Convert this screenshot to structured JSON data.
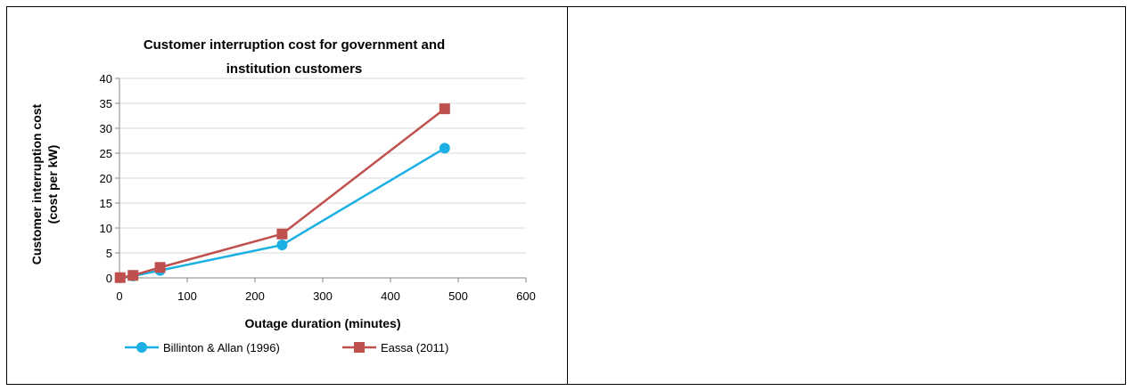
{
  "chart_data": {
    "type": "line",
    "title": [
      "Customer interruption cost for government and",
      "institution customers"
    ],
    "xlabel": "Outage duration (minutes)",
    "ylabel": [
      "Customer interruption cost",
      "(cost per kW)"
    ],
    "xlim": [
      0,
      600
    ],
    "ylim": [
      0,
      40
    ],
    "xticks": [
      0,
      100,
      200,
      300,
      400,
      500,
      600
    ],
    "yticks": [
      0,
      5,
      10,
      15,
      20,
      25,
      30,
      35,
      40
    ],
    "grid": "horizontal",
    "legend_position": "bottom",
    "series": [
      {
        "name": "Billinton & Allan (1996)",
        "color": "#1ab0e4",
        "marker": "circle",
        "x": [
          1,
          20,
          60,
          240,
          480
        ],
        "y": [
          0.04,
          0.37,
          1.5,
          6.6,
          26.0
        ]
      },
      {
        "name": "Eassa (2011)",
        "color": "#c0504d",
        "marker": "square",
        "x": [
          1,
          20,
          60,
          240,
          480
        ],
        "y": [
          0.05,
          0.5,
          2.1,
          8.8,
          33.9
        ]
      }
    ]
  }
}
